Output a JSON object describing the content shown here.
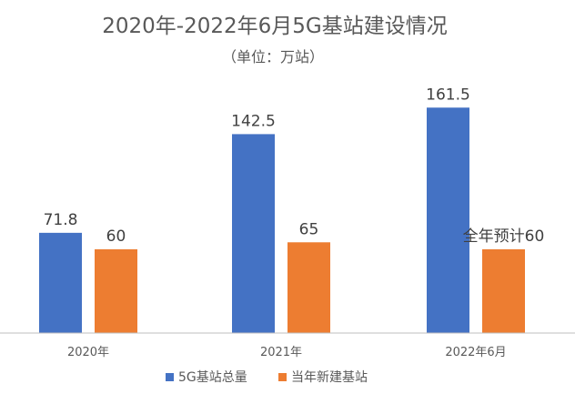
{
  "chart_data": {
    "type": "bar",
    "title": "2020年-2022年6月5G基站建设情况",
    "subtitle": "（单位：万站）",
    "categories": [
      "2020年",
      "2021年",
      "2022年6月"
    ],
    "series": [
      {
        "name": "5G基站总量",
        "color": "#4472C4",
        "values": [
          71.8,
          142.5,
          161.5
        ],
        "labels": [
          "71.8",
          "142.5",
          "161.5"
        ]
      },
      {
        "name": "当年新建基站",
        "color": "#ED7D31",
        "values": [
          60,
          65,
          60
        ],
        "labels": [
          "60",
          "65",
          "全年预计60"
        ]
      }
    ],
    "ylim": [
      0,
      180
    ],
    "grid": false,
    "legend": "bottom",
    "xlabel": "",
    "ylabel": ""
  }
}
